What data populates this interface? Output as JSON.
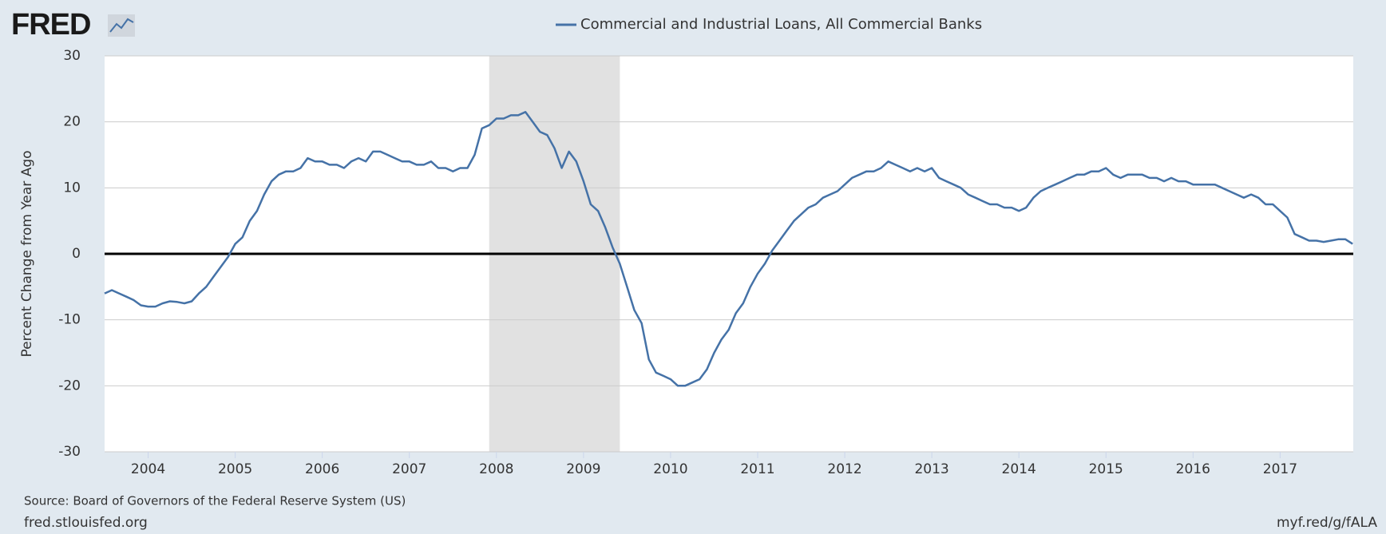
{
  "brand": "FRED",
  "chart_data": {
    "type": "line",
    "y_label": "Percent Change from Year Ago",
    "source": "Source: Board of Governors of the Federal Reserve System (US)",
    "site": "fred.stlouisfed.org",
    "short_link": "myf.red/g/fALA",
    "x": [
      2003.5,
      2003.583,
      2003.667,
      2003.75,
      2003.833,
      2003.917,
      2004,
      2004.083,
      2004.167,
      2004.25,
      2004.333,
      2004.417,
      2004.5,
      2004.583,
      2004.667,
      2004.75,
      2004.833,
      2004.917,
      2005,
      2005.083,
      2005.167,
      2005.25,
      2005.333,
      2005.417,
      2005.5,
      2005.583,
      2005.667,
      2005.75,
      2005.833,
      2005.917,
      2006,
      2006.083,
      2006.167,
      2006.25,
      2006.333,
      2006.417,
      2006.5,
      2006.583,
      2006.667,
      2006.75,
      2006.833,
      2006.917,
      2007,
      2007.083,
      2007.167,
      2007.25,
      2007.333,
      2007.417,
      2007.5,
      2007.583,
      2007.667,
      2007.75,
      2007.833,
      2007.917,
      2008,
      2008.083,
      2008.167,
      2008.25,
      2008.333,
      2008.417,
      2008.5,
      2008.583,
      2008.667,
      2008.75,
      2008.833,
      2008.917,
      2009,
      2009.083,
      2009.167,
      2009.25,
      2009.333,
      2009.417,
      2009.5,
      2009.583,
      2009.667,
      2009.75,
      2009.833,
      2009.917,
      2010,
      2010.083,
      2010.167,
      2010.25,
      2010.333,
      2010.417,
      2010.5,
      2010.583,
      2010.667,
      2010.75,
      2010.833,
      2010.917,
      2011,
      2011.083,
      2011.167,
      2011.25,
      2011.333,
      2011.417,
      2011.5,
      2011.583,
      2011.667,
      2011.75,
      2011.833,
      2011.917,
      2012,
      2012.083,
      2012.167,
      2012.25,
      2012.333,
      2012.417,
      2012.5,
      2012.583,
      2012.667,
      2012.75,
      2012.833,
      2012.917,
      2013,
      2013.083,
      2013.167,
      2013.25,
      2013.333,
      2013.417,
      2013.5,
      2013.583,
      2013.667,
      2013.75,
      2013.833,
      2013.917,
      2014,
      2014.083,
      2014.167,
      2014.25,
      2014.333,
      2014.417,
      2014.5,
      2014.583,
      2014.667,
      2014.75,
      2014.833,
      2014.917,
      2015,
      2015.083,
      2015.167,
      2015.25,
      2015.333,
      2015.417,
      2015.5,
      2015.583,
      2015.667,
      2015.75,
      2015.833,
      2015.917,
      2016,
      2016.083,
      2016.167,
      2016.25,
      2016.333,
      2016.417,
      2016.5,
      2016.583,
      2016.667,
      2016.75,
      2016.833,
      2016.917,
      2017,
      2017.083,
      2017.167,
      2017.25,
      2017.333,
      2017.417,
      2017.5,
      2017.583,
      2017.667,
      2017.75,
      2017.833
    ],
    "series": [
      {
        "name": "Commercial and Industrial Loans, All Commercial Banks",
        "color": "#4572a7",
        "values": [
          -6,
          -5.5,
          -6,
          -6.5,
          -7,
          -7.8,
          -8,
          -8,
          -7.5,
          -7.2,
          -7.3,
          -7.5,
          -7.2,
          -6,
          -5,
          -3.5,
          -2,
          -0.5,
          1.5,
          2.5,
          5,
          6.5,
          9,
          11,
          12,
          12.5,
          12.5,
          13,
          14.5,
          14,
          14,
          13.5,
          13.5,
          13,
          14,
          14.5,
          14,
          15.5,
          15.5,
          15,
          14.5,
          14,
          14,
          13.5,
          13.5,
          14,
          13,
          13,
          12.5,
          13,
          13,
          15,
          19,
          19.5,
          20.5,
          20.5,
          21,
          21,
          21.5,
          20,
          18.5,
          18,
          16,
          13,
          15.5,
          14,
          11,
          7.5,
          6.5,
          4,
          1,
          -1.5,
          -5,
          -8.5,
          -10.5,
          -16,
          -18,
          -18.5,
          -19,
          -20,
          -20,
          -19.5,
          -19,
          -17.5,
          -15,
          -13,
          -11.5,
          -9,
          -7.5,
          -5,
          -3,
          -1.5,
          0.5,
          2,
          3.5,
          5,
          6,
          7,
          7.5,
          8.5,
          9,
          9.5,
          10.5,
          11.5,
          12,
          12.5,
          12.5,
          13,
          14,
          13.5,
          13,
          12.5,
          13,
          12.5,
          13,
          11.5,
          11,
          10.5,
          10,
          9,
          8.5,
          8,
          7.5,
          7.5,
          7,
          7,
          6.5,
          7,
          8.5,
          9.5,
          10,
          10.5,
          11,
          11.5,
          12,
          12,
          12.5,
          12.5,
          13,
          12,
          11.5,
          12,
          12,
          12,
          11.5,
          11.5,
          11,
          11.5,
          11,
          11,
          10.5,
          10.5,
          10.5,
          10.5,
          10,
          9.5,
          9,
          8.5,
          9,
          8.5,
          7.5,
          7.5,
          6.5,
          5.5,
          3,
          2.5,
          2,
          2,
          1.8,
          2,
          2.2,
          2.2,
          1.5
        ]
      }
    ],
    "xlim": [
      2003.5,
      2017.84
    ],
    "xticks": [
      2004,
      2005,
      2006,
      2007,
      2008,
      2009,
      2010,
      2011,
      2012,
      2013,
      2014,
      2015,
      2016,
      2017
    ],
    "ylim": [
      -30,
      30
    ],
    "yticks": [
      -30,
      -20,
      -10,
      0,
      10,
      20,
      30
    ],
    "grid": true,
    "zero_line": true,
    "recessions": [
      [
        2007.917,
        2009.417
      ]
    ],
    "recession_color": "#e1e1e1"
  }
}
